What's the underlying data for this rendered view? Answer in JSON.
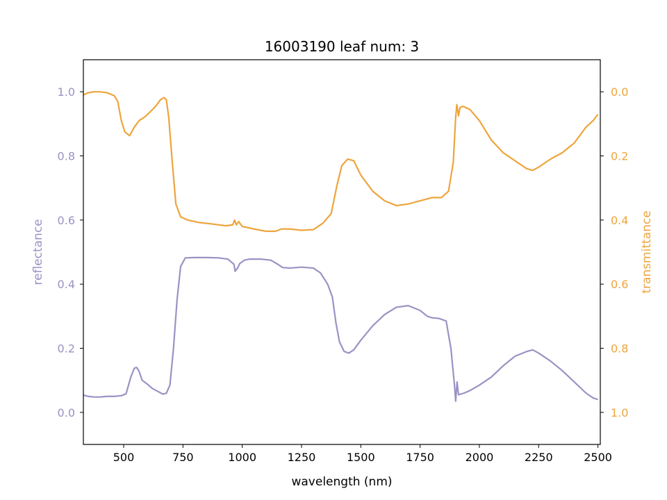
{
  "chart_data": {
    "type": "line",
    "title": "16003190 leaf num: 3",
    "xlabel": "wavelength (nm)",
    "ylabel_left": "reflectance",
    "ylabel_right": "transmittance",
    "xlim": [
      330,
      2510
    ],
    "ylim_left": [
      -0.1,
      1.1
    ],
    "ylim_right": [
      1.1,
      -0.1
    ],
    "right_axis_inverted": true,
    "grid": false,
    "x_ticks": [
      {
        "value": 500,
        "label": "500"
      },
      {
        "value": 750,
        "label": "750"
      },
      {
        "value": 1000,
        "label": "1000"
      },
      {
        "value": 1250,
        "label": "1250"
      },
      {
        "value": 1500,
        "label": "1500"
      },
      {
        "value": 1750,
        "label": "1750"
      },
      {
        "value": 2000,
        "label": "2000"
      },
      {
        "value": 2250,
        "label": "2250"
      },
      {
        "value": 2500,
        "label": "2500"
      }
    ],
    "y_ticks_left": [
      {
        "value": 0.0,
        "label": "0.0"
      },
      {
        "value": 0.2,
        "label": "0.2"
      },
      {
        "value": 0.4,
        "label": "0.4"
      },
      {
        "value": 0.6,
        "label": "0.6"
      },
      {
        "value": 0.8,
        "label": "0.8"
      },
      {
        "value": 1.0,
        "label": "1.0"
      }
    ],
    "y_ticks_right": [
      {
        "value": 0.0,
        "label": "0.0"
      },
      {
        "value": 0.2,
        "label": "0.2"
      },
      {
        "value": 0.4,
        "label": "0.4"
      },
      {
        "value": 0.6,
        "label": "0.6"
      },
      {
        "value": 0.8,
        "label": "0.8"
      },
      {
        "value": 1.0,
        "label": "1.0"
      }
    ],
    "colors": {
      "reflectance": "#9a92c4",
      "transmittance": "#eea43c",
      "axes": "#000000"
    },
    "series": [
      {
        "axis": "left",
        "color_key": "reflectance",
        "points": [
          [
            330,
            0.054
          ],
          [
            350,
            0.05
          ],
          [
            375,
            0.048
          ],
          [
            400,
            0.048
          ],
          [
            430,
            0.05
          ],
          [
            460,
            0.05
          ],
          [
            490,
            0.052
          ],
          [
            510,
            0.058
          ],
          [
            530,
            0.11
          ],
          [
            545,
            0.138
          ],
          [
            555,
            0.14
          ],
          [
            565,
            0.128
          ],
          [
            578,
            0.1
          ],
          [
            600,
            0.088
          ],
          [
            620,
            0.075
          ],
          [
            645,
            0.065
          ],
          [
            665,
            0.057
          ],
          [
            680,
            0.06
          ],
          [
            695,
            0.085
          ],
          [
            710,
            0.2
          ],
          [
            725,
            0.35
          ],
          [
            740,
            0.455
          ],
          [
            760,
            0.482
          ],
          [
            800,
            0.483
          ],
          [
            850,
            0.483
          ],
          [
            900,
            0.482
          ],
          [
            940,
            0.478
          ],
          [
            965,
            0.462
          ],
          [
            970,
            0.44
          ],
          [
            980,
            0.45
          ],
          [
            990,
            0.465
          ],
          [
            1000,
            0.47
          ],
          [
            1010,
            0.475
          ],
          [
            1030,
            0.478
          ],
          [
            1080,
            0.478
          ],
          [
            1120,
            0.475
          ],
          [
            1150,
            0.462
          ],
          [
            1170,
            0.452
          ],
          [
            1200,
            0.45
          ],
          [
            1250,
            0.453
          ],
          [
            1300,
            0.45
          ],
          [
            1330,
            0.435
          ],
          [
            1360,
            0.4
          ],
          [
            1380,
            0.36
          ],
          [
            1395,
            0.28
          ],
          [
            1410,
            0.22
          ],
          [
            1430,
            0.19
          ],
          [
            1450,
            0.185
          ],
          [
            1470,
            0.195
          ],
          [
            1500,
            0.225
          ],
          [
            1550,
            0.27
          ],
          [
            1600,
            0.305
          ],
          [
            1650,
            0.328
          ],
          [
            1700,
            0.333
          ],
          [
            1750,
            0.318
          ],
          [
            1780,
            0.3
          ],
          [
            1800,
            0.295
          ],
          [
            1830,
            0.293
          ],
          [
            1860,
            0.285
          ],
          [
            1880,
            0.2
          ],
          [
            1895,
            0.085
          ],
          [
            1900,
            0.035
          ],
          [
            1906,
            0.095
          ],
          [
            1912,
            0.055
          ],
          [
            1935,
            0.06
          ],
          [
            1960,
            0.068
          ],
          [
            2000,
            0.085
          ],
          [
            2050,
            0.11
          ],
          [
            2100,
            0.145
          ],
          [
            2150,
            0.175
          ],
          [
            2200,
            0.19
          ],
          [
            2225,
            0.195
          ],
          [
            2250,
            0.185
          ],
          [
            2300,
            0.16
          ],
          [
            2350,
            0.13
          ],
          [
            2400,
            0.095
          ],
          [
            2450,
            0.06
          ],
          [
            2480,
            0.045
          ],
          [
            2500,
            0.04
          ]
        ]
      },
      {
        "axis": "right",
        "color_key": "transmittance",
        "points": [
          [
            330,
            0.01
          ],
          [
            350,
            0.003
          ],
          [
            375,
            0.0
          ],
          [
            400,
            0.0
          ],
          [
            430,
            0.003
          ],
          [
            460,
            0.012
          ],
          [
            475,
            0.03
          ],
          [
            490,
            0.09
          ],
          [
            505,
            0.125
          ],
          [
            525,
            0.137
          ],
          [
            545,
            0.11
          ],
          [
            565,
            0.09
          ],
          [
            590,
            0.078
          ],
          [
            615,
            0.06
          ],
          [
            635,
            0.045
          ],
          [
            655,
            0.025
          ],
          [
            670,
            0.018
          ],
          [
            680,
            0.025
          ],
          [
            690,
            0.08
          ],
          [
            705,
            0.22
          ],
          [
            720,
            0.35
          ],
          [
            740,
            0.39
          ],
          [
            770,
            0.4
          ],
          [
            820,
            0.408
          ],
          [
            880,
            0.413
          ],
          [
            930,
            0.418
          ],
          [
            960,
            0.415
          ],
          [
            968,
            0.4
          ],
          [
            975,
            0.415
          ],
          [
            985,
            0.405
          ],
          [
            1000,
            0.42
          ],
          [
            1050,
            0.428
          ],
          [
            1100,
            0.435
          ],
          [
            1140,
            0.435
          ],
          [
            1165,
            0.428
          ],
          [
            1200,
            0.428
          ],
          [
            1250,
            0.432
          ],
          [
            1300,
            0.43
          ],
          [
            1340,
            0.41
          ],
          [
            1375,
            0.38
          ],
          [
            1400,
            0.29
          ],
          [
            1420,
            0.23
          ],
          [
            1445,
            0.21
          ],
          [
            1470,
            0.215
          ],
          [
            1500,
            0.26
          ],
          [
            1550,
            0.31
          ],
          [
            1600,
            0.34
          ],
          [
            1650,
            0.355
          ],
          [
            1700,
            0.35
          ],
          [
            1750,
            0.34
          ],
          [
            1800,
            0.33
          ],
          [
            1840,
            0.33
          ],
          [
            1870,
            0.31
          ],
          [
            1890,
            0.22
          ],
          [
            1900,
            0.08
          ],
          [
            1905,
            0.04
          ],
          [
            1912,
            0.075
          ],
          [
            1918,
            0.05
          ],
          [
            1930,
            0.045
          ],
          [
            1960,
            0.055
          ],
          [
            2000,
            0.09
          ],
          [
            2050,
            0.15
          ],
          [
            2100,
            0.19
          ],
          [
            2150,
            0.215
          ],
          [
            2200,
            0.24
          ],
          [
            2225,
            0.245
          ],
          [
            2250,
            0.235
          ],
          [
            2300,
            0.21
          ],
          [
            2350,
            0.19
          ],
          [
            2400,
            0.16
          ],
          [
            2450,
            0.11
          ],
          [
            2480,
            0.09
          ],
          [
            2500,
            0.07
          ]
        ]
      }
    ]
  }
}
